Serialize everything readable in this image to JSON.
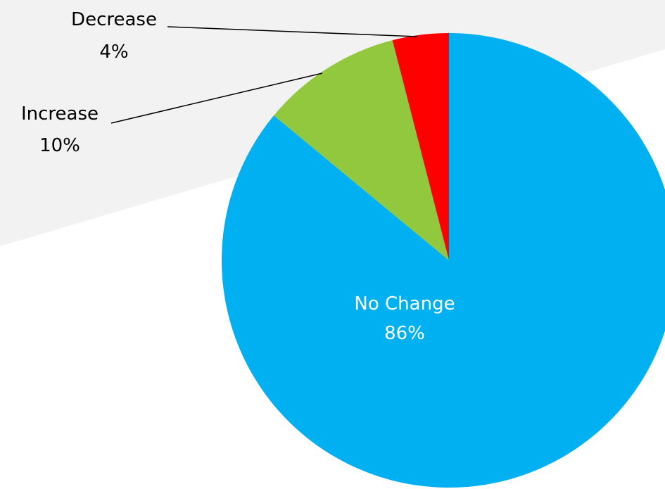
{
  "chart_data": {
    "type": "pie",
    "categories": [
      "No Change",
      "Increase",
      "Decrease"
    ],
    "values": [
      86,
      10,
      4
    ],
    "value_labels": [
      "86%",
      "10%",
      "4%"
    ],
    "colors": [
      "#00B0F0",
      "#92C83E",
      "#FF0000"
    ],
    "start": "12 o'clock, clockwise",
    "legend": "none",
    "title": ""
  },
  "colors": {
    "background": "#FFFFFF",
    "backdrop_band": "#F2F2F2",
    "leader_line": "#000000",
    "inside_label_text": "#FFFFFF",
    "outside_label_text": "#000000"
  }
}
